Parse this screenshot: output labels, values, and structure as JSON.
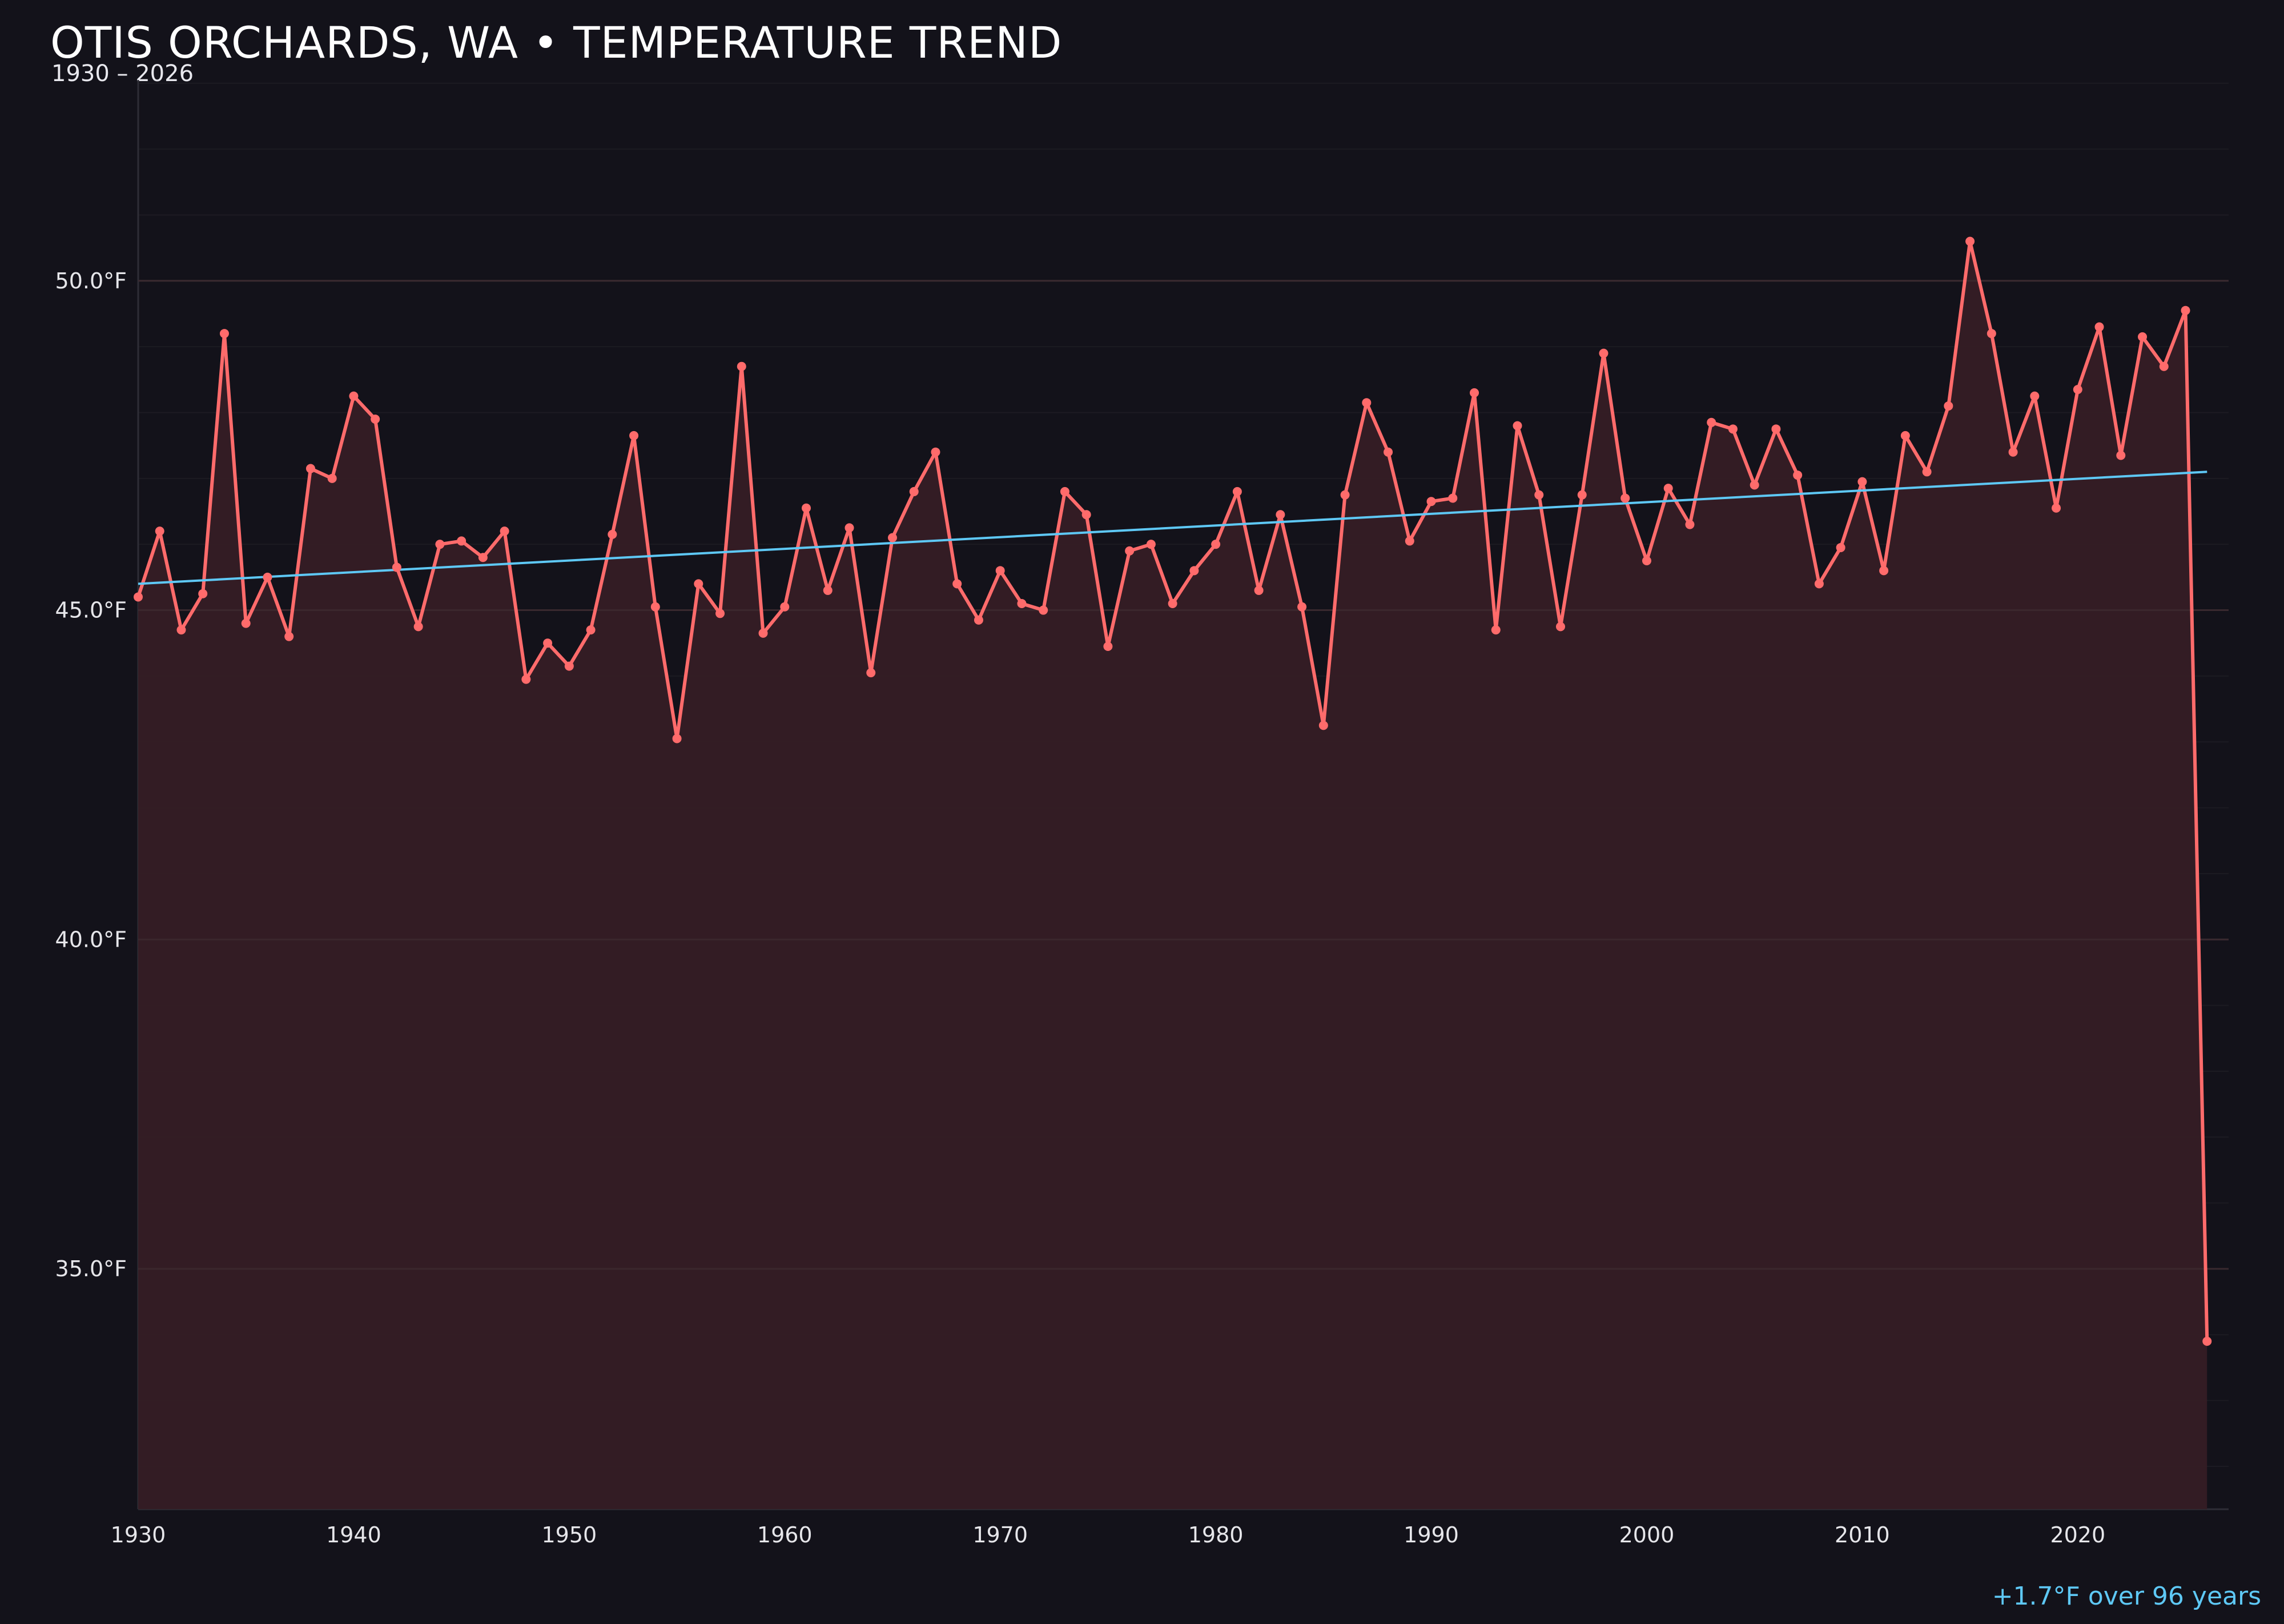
{
  "title": "OTIS ORCHARDS, WA • TEMPERATURE TREND",
  "subtitle": "1930 – 2026",
  "annotation": "+1.7°F over 96 years",
  "colors": {
    "background": "#13121a",
    "series": "#ff6b6b",
    "fill": "#351e25",
    "trend": "#5ec8f5"
  },
  "chart_data": {
    "type": "line",
    "title": "OTIS ORCHARDS, WA • TEMPERATURE TREND",
    "xlabel": "",
    "ylabel": "",
    "xlim": [
      1930,
      2027
    ],
    "ylim": [
      31.35,
      53.05
    ],
    "grid": true,
    "x_ticks": [
      1930,
      1940,
      1950,
      1960,
      1970,
      1980,
      1990,
      2000,
      2010,
      2020
    ],
    "y_ticks": [
      35,
      40,
      45,
      50
    ],
    "y_tick_labels": [
      "35.0°F",
      "40.0°F",
      "45.0°F",
      "50.0°F"
    ],
    "x": [
      1930,
      1931,
      1932,
      1933,
      1934,
      1935,
      1936,
      1937,
      1938,
      1939,
      1940,
      1941,
      1942,
      1943,
      1944,
      1945,
      1946,
      1947,
      1948,
      1949,
      1950,
      1951,
      1952,
      1953,
      1954,
      1955,
      1956,
      1957,
      1958,
      1959,
      1960,
      1961,
      1962,
      1963,
      1964,
      1965,
      1966,
      1967,
      1968,
      1969,
      1970,
      1971,
      1972,
      1973,
      1974,
      1975,
      1976,
      1977,
      1978,
      1979,
      1980,
      1981,
      1982,
      1983,
      1984,
      1985,
      1986,
      1987,
      1988,
      1989,
      1990,
      1991,
      1992,
      1993,
      1994,
      1995,
      1996,
      1997,
      1998,
      1999,
      2000,
      2001,
      2002,
      2003,
      2004,
      2005,
      2006,
      2007,
      2008,
      2009,
      2010,
      2011,
      2012,
      2013,
      2014,
      2015,
      2016,
      2017,
      2018,
      2019,
      2020,
      2021,
      2022,
      2023,
      2024,
      2025,
      2026
    ],
    "values": [
      45.2,
      46.2,
      44.7,
      45.25,
      49.2,
      44.8,
      45.5,
      44.6,
      47.15,
      47.0,
      48.25,
      47.9,
      45.65,
      44.75,
      46.0,
      46.05,
      45.8,
      46.2,
      43.95,
      44.5,
      44.15,
      44.7,
      46.15,
      47.65,
      45.05,
      43.05,
      45.4,
      44.95,
      48.7,
      44.65,
      45.05,
      46.55,
      45.3,
      46.25,
      44.05,
      46.1,
      46.8,
      47.4,
      45.4,
      44.85,
      45.6,
      45.1,
      45.0,
      46.8,
      46.45,
      44.45,
      45.9,
      46.0,
      45.1,
      45.6,
      46.0,
      46.8,
      45.3,
      46.45,
      45.05,
      43.25,
      46.75,
      48.15,
      47.4,
      46.05,
      46.65,
      46.7,
      48.3,
      44.7,
      47.8,
      46.75,
      44.75,
      46.75,
      48.9,
      46.7,
      45.75,
      46.85,
      46.3,
      47.85,
      47.75,
      46.9,
      47.75,
      47.05,
      45.4,
      45.95,
      46.95,
      45.6,
      47.65,
      47.1,
      48.1,
      50.6,
      49.2,
      47.4,
      48.25,
      46.55,
      48.35,
      49.3,
      47.35,
      49.15,
      48.7,
      49.55,
      33.9
    ],
    "trend": {
      "x": [
        1930,
        2026
      ],
      "y": [
        45.4,
        47.1
      ]
    }
  }
}
